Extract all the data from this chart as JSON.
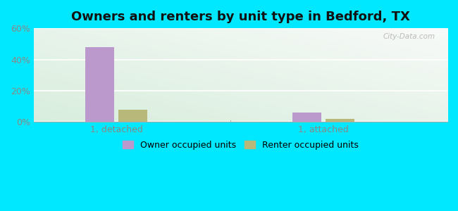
{
  "title": "Owners and renters by unit type in Bedford, TX",
  "categories": [
    "1, detached",
    "1, attached"
  ],
  "owner_values": [
    48,
    6
  ],
  "renter_values": [
    8,
    2
  ],
  "owner_color": "#bb99cc",
  "renter_color": "#b8b87a",
  "ylim": [
    0,
    60
  ],
  "yticks": [
    0,
    20,
    40,
    60
  ],
  "ytick_labels": [
    "0%",
    "20%",
    "40%",
    "60%"
  ],
  "background_outer": "#00e8ff",
  "bar_width": 0.28,
  "title_fontsize": 13,
  "legend_label_owner": "Owner occupied units",
  "legend_label_renter": "Renter occupied units",
  "watermark": "City-Data.com",
  "grid_color": "#ccddcc",
  "tick_color": "#888888"
}
